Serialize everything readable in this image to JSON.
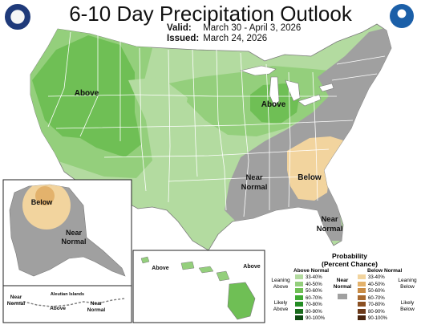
{
  "header": {
    "title": "6-10 Day Precipitation Outlook",
    "valid_label": "Valid:",
    "valid_value": "March 30 - April 3, 2026",
    "issued_label": "Issued:",
    "issued_value": "March 24, 2026"
  },
  "map_labels": {
    "conus_above_west": "Above",
    "conus_above_midwest": "Above",
    "conus_near_normal_south_1": "Near",
    "conus_near_normal_south_2": "Normal",
    "conus_below_southeast": "Below",
    "conus_near_normal_florida_1": "Near",
    "conus_near_normal_florida_2": "Normal",
    "alaska_below": "Below",
    "alaska_near_normal_1": "Near",
    "alaska_near_normal_2": "Normal",
    "hawaii_above_left": "Above",
    "hawaii_above_right": "Above",
    "aleutian_title": "Aleutian Islands",
    "aleutian_near_normal_left_1": "Near",
    "aleutian_near_normal_left_2": "Normal",
    "aleutian_above": "Above",
    "aleutian_near_normal_right_1": "Near",
    "aleutian_near_normal_right_2": "Normal"
  },
  "legend": {
    "title_line1": "Probability",
    "title_line2": "(Percent Chance)",
    "above_title": "Above Normal",
    "near_title_1": "Near",
    "near_title_2": "Normal",
    "below_title": "Below Normal",
    "leaning_above_1": "Leaning",
    "leaning_above_2": "Above",
    "likely_above_1": "Likely",
    "likely_above_2": "Above",
    "leaning_below_1": "Leaning",
    "leaning_below_2": "Below",
    "likely_below_1": "Likely",
    "likely_below_2": "Below",
    "above_items": [
      {
        "label": "33-40%",
        "color": "#b3dba0"
      },
      {
        "label": "40-50%",
        "color": "#94cf7c"
      },
      {
        "label": "50-60%",
        "color": "#6fbf55"
      },
      {
        "label": "60-70%",
        "color": "#3faa33"
      },
      {
        "label": "70-80%",
        "color": "#238c23"
      },
      {
        "label": "80-90%",
        "color": "#196a1b"
      },
      {
        "label": "90-100%",
        "color": "#0f4a12"
      }
    ],
    "near_color": "#a0a0a0",
    "below_items": [
      {
        "label": "33-40%",
        "color": "#f2d49e"
      },
      {
        "label": "40-50%",
        "color": "#e3b26c"
      },
      {
        "label": "50-60%",
        "color": "#c98c45"
      },
      {
        "label": "60-70%",
        "color": "#a86a30"
      },
      {
        "label": "70-80%",
        "color": "#8a4f22"
      },
      {
        "label": "80-90%",
        "color": "#6b3818"
      },
      {
        "label": "90-100%",
        "color": "#4a250f"
      }
    ]
  }
}
